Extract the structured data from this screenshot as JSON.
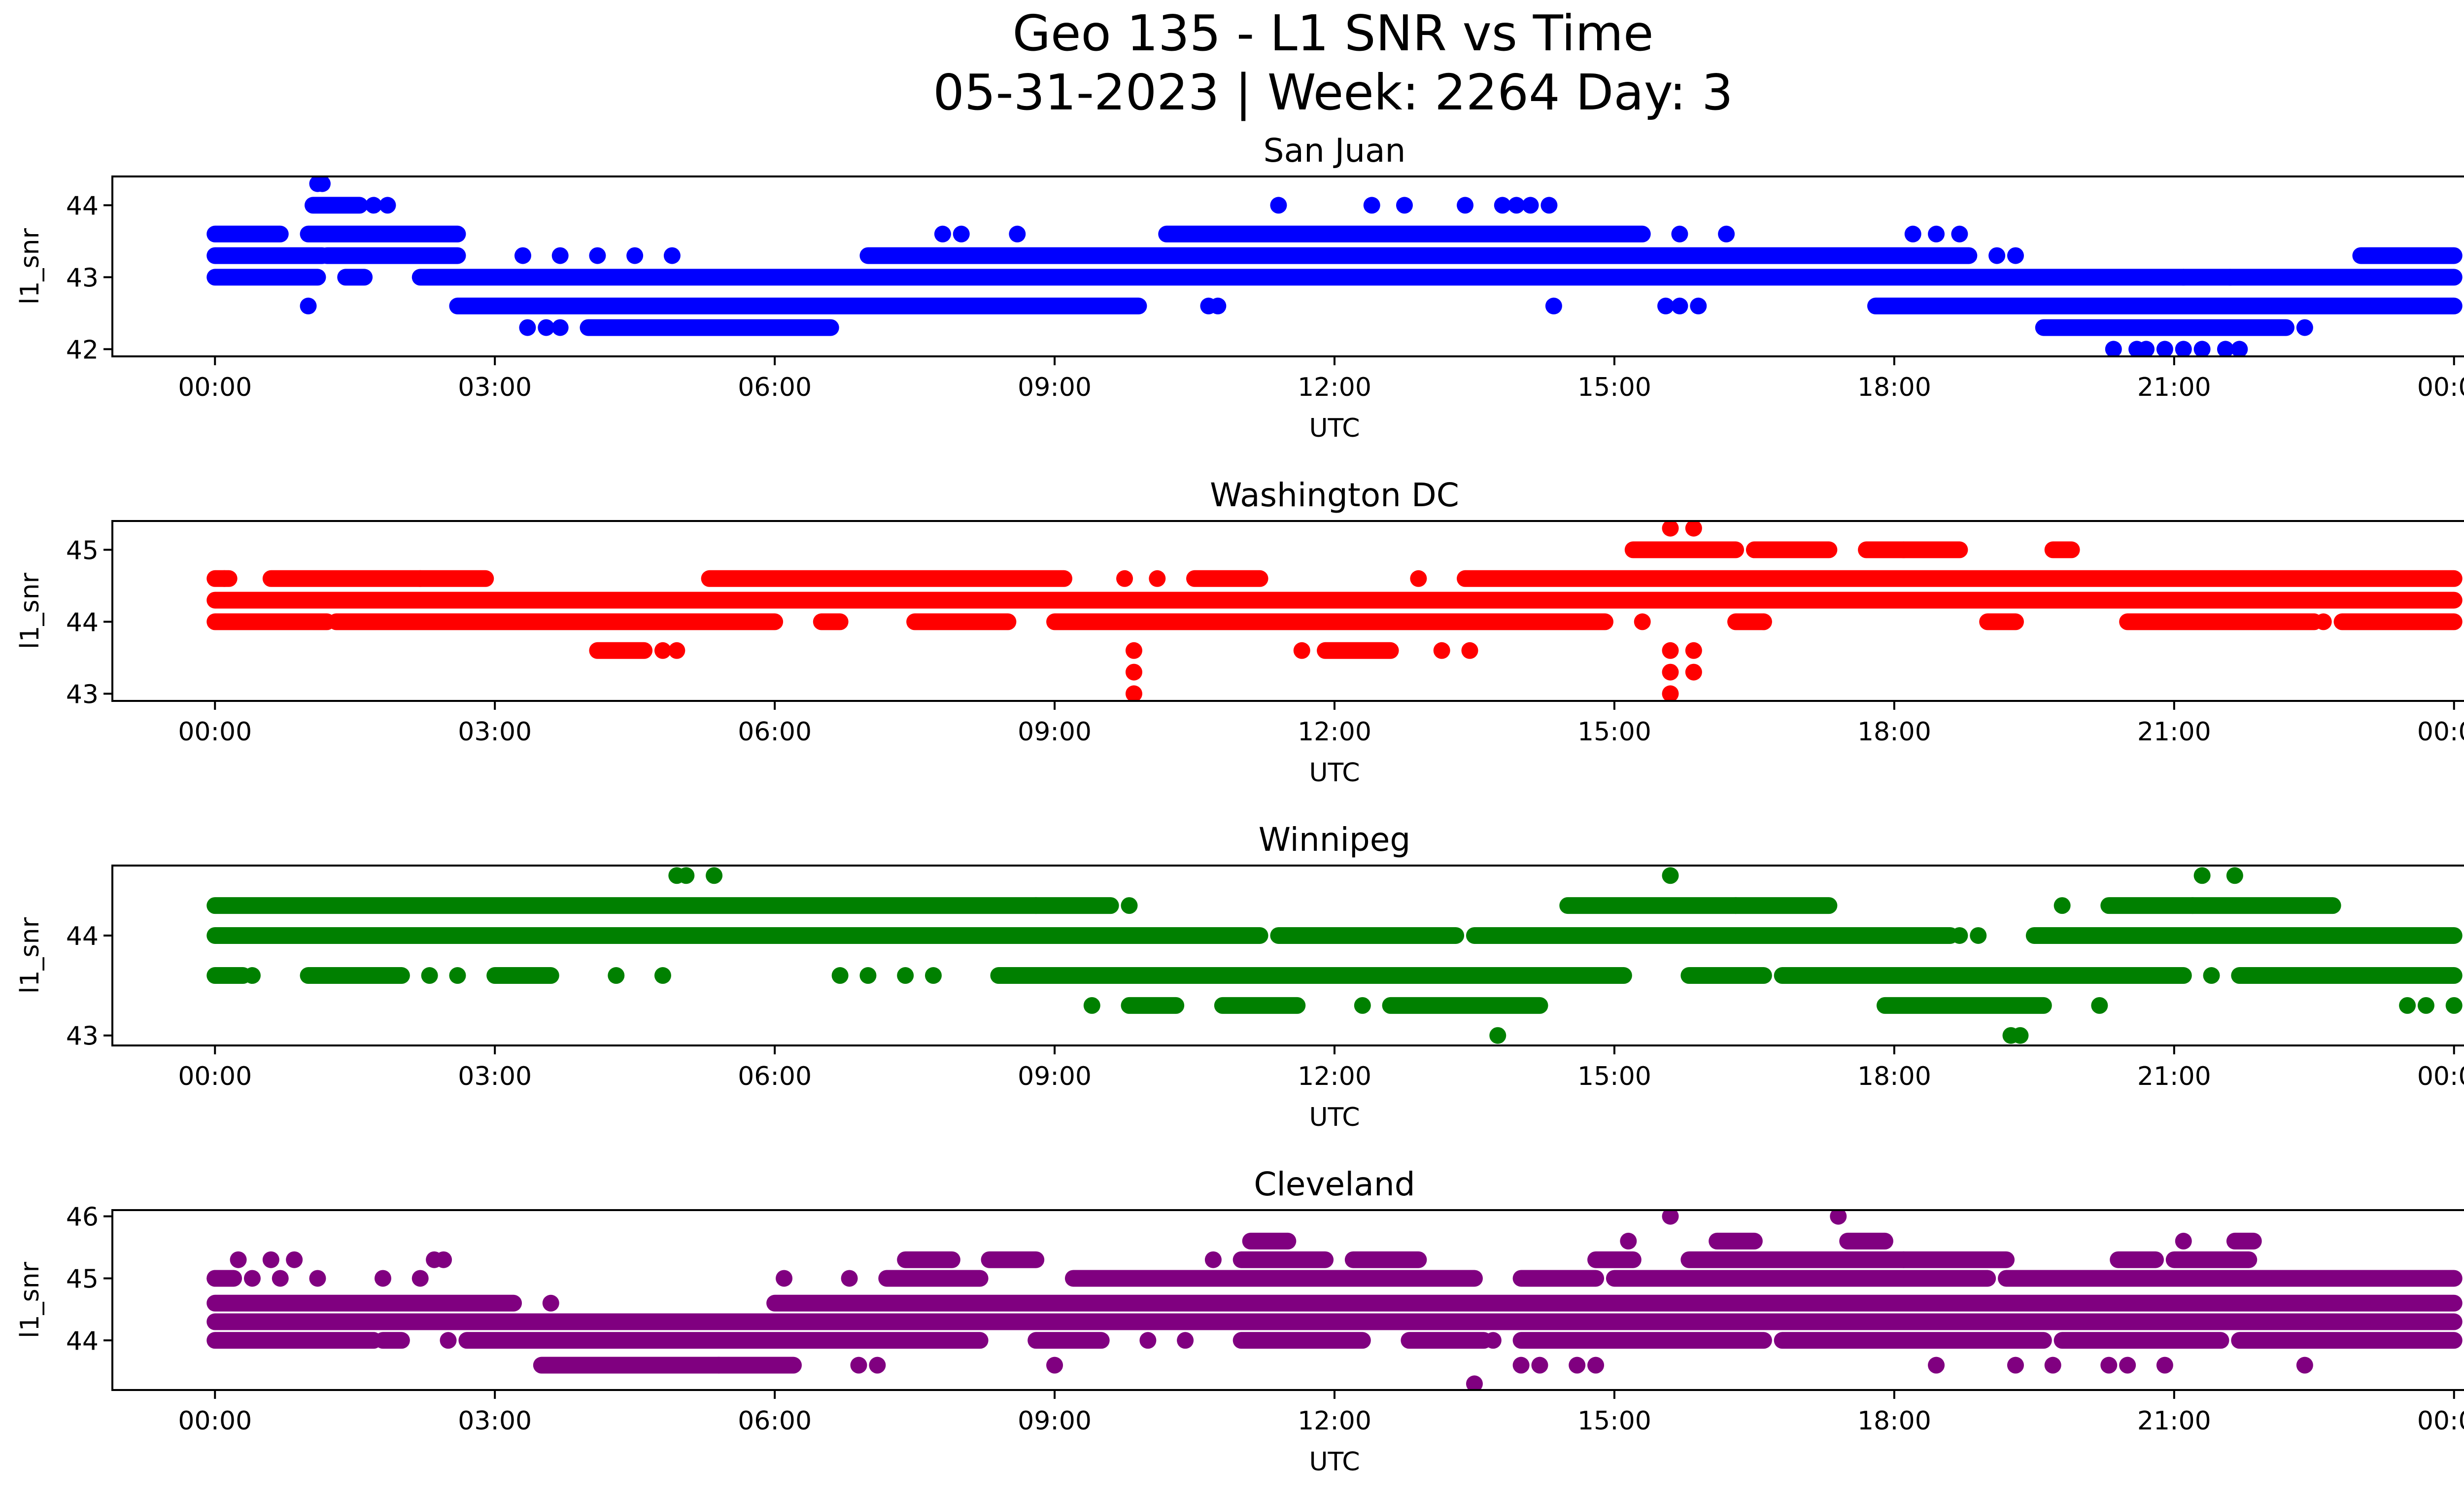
{
  "figure": {
    "title_line1": "Geo 135 - L1 SNR vs Time",
    "title_line2": "05-31-2023 | Week: 2264 Day: 3"
  },
  "chart_data": [
    {
      "type": "scatter",
      "title": "San Juan",
      "xlabel": "UTC",
      "ylabel": "l1_snr",
      "color": "#0000ff",
      "xlim": [
        "2023-05-30 22:54",
        "2023-06-01 01:06"
      ],
      "ylim": [
        41.9,
        44.4
      ],
      "xticks": [
        "00:00",
        "03:00",
        "06:00",
        "09:00",
        "12:00",
        "15:00",
        "18:00",
        "21:00",
        "00:00"
      ],
      "yticks": [
        42,
        43,
        44
      ],
      "x_unit": "UTC time of day, hours from 00:00 2023-05-31",
      "runs": [
        {
          "y": 43.0,
          "ranges": [
            [
              0.0,
              1.1
            ],
            [
              1.4,
              1.6
            ],
            [
              2.2,
              24.0
            ]
          ]
        },
        {
          "y": 43.3,
          "ranges": [
            [
              0.0,
              1.15
            ],
            [
              1.2,
              2.6
            ],
            [
              7.0,
              18.8
            ],
            [
              23.0,
              24.0
            ]
          ]
        },
        {
          "y": 43.6,
          "ranges": [
            [
              0.0,
              0.7
            ],
            [
              1.0,
              2.6
            ],
            [
              10.2,
              15.3
            ]
          ]
        },
        {
          "y": 44.0,
          "ranges": [
            [
              1.05,
              1.55
            ]
          ]
        },
        {
          "y": 42.6,
          "ranges": [
            [
              2.6,
              9.9
            ],
            [
              17.8,
              24.0
            ]
          ]
        },
        {
          "y": 42.3,
          "ranges": [
            [
              4.0,
              6.6
            ],
            [
              19.6,
              22.2
            ]
          ]
        }
      ],
      "points": [
        {
          "x": 1.0,
          "y": 42.6
        },
        {
          "x": 1.1,
          "y": 44.3
        },
        {
          "x": 1.15,
          "y": 44.3
        },
        {
          "x": 1.7,
          "y": 44.0
        },
        {
          "x": 1.85,
          "y": 44.0
        },
        {
          "x": 3.35,
          "y": 42.3
        },
        {
          "x": 3.55,
          "y": 42.3
        },
        {
          "x": 3.7,
          "y": 42.3
        },
        {
          "x": 3.3,
          "y": 43.3
        },
        {
          "x": 3.7,
          "y": 43.3
        },
        {
          "x": 4.1,
          "y": 43.3
        },
        {
          "x": 4.5,
          "y": 43.3
        },
        {
          "x": 4.9,
          "y": 43.3
        },
        {
          "x": 7.8,
          "y": 43.6
        },
        {
          "x": 8.0,
          "y": 43.6
        },
        {
          "x": 8.6,
          "y": 43.6
        },
        {
          "x": 10.65,
          "y": 42.6
        },
        {
          "x": 10.75,
          "y": 42.6
        },
        {
          "x": 11.4,
          "y": 44.0
        },
        {
          "x": 12.4,
          "y": 44.0
        },
        {
          "x": 12.75,
          "y": 44.0
        },
        {
          "x": 13.4,
          "y": 44.0
        },
        {
          "x": 13.8,
          "y": 44.0
        },
        {
          "x": 13.95,
          "y": 44.0
        },
        {
          "x": 14.1,
          "y": 44.0
        },
        {
          "x": 14.3,
          "y": 44.0
        },
        {
          "x": 14.35,
          "y": 42.6
        },
        {
          "x": 15.55,
          "y": 42.6
        },
        {
          "x": 15.7,
          "y": 42.6
        },
        {
          "x": 15.9,
          "y": 42.6
        },
        {
          "x": 15.7,
          "y": 43.6
        },
        {
          "x": 16.2,
          "y": 43.6
        },
        {
          "x": 18.2,
          "y": 43.6
        },
        {
          "x": 18.45,
          "y": 43.6
        },
        {
          "x": 18.7,
          "y": 43.6
        },
        {
          "x": 19.1,
          "y": 43.3
        },
        {
          "x": 19.3,
          "y": 43.3
        },
        {
          "x": 20.35,
          "y": 42.0
        },
        {
          "x": 20.6,
          "y": 42.0
        },
        {
          "x": 20.7,
          "y": 42.0
        },
        {
          "x": 20.9,
          "y": 42.0
        },
        {
          "x": 21.1,
          "y": 42.0
        },
        {
          "x": 21.3,
          "y": 42.0
        },
        {
          "x": 21.55,
          "y": 42.0
        },
        {
          "x": 21.7,
          "y": 42.0
        },
        {
          "x": 22.4,
          "y": 42.3
        },
        {
          "x": 21.1,
          "y": 43.0
        },
        {
          "x": 21.6,
          "y": 43.0
        }
      ]
    },
    {
      "type": "scatter",
      "title": "Washington DC",
      "xlabel": "UTC",
      "ylabel": "l1_snr",
      "color": "#ff0000",
      "xlim": [
        "2023-05-30 22:54",
        "2023-06-01 01:06"
      ],
      "ylim": [
        42.9,
        45.4
      ],
      "xticks": [
        "00:00",
        "03:00",
        "06:00",
        "09:00",
        "12:00",
        "15:00",
        "18:00",
        "21:00",
        "00:00"
      ],
      "yticks": [
        43,
        44,
        45
      ],
      "x_unit": "UTC time of day, hours from 00:00 2023-05-31",
      "runs": [
        {
          "y": 44.3,
          "ranges": [
            [
              0.0,
              24.0
            ]
          ]
        },
        {
          "y": 44.0,
          "ranges": [
            [
              0.0,
              1.2
            ],
            [
              1.3,
              6.0
            ],
            [
              6.5,
              6.7
            ],
            [
              7.5,
              8.5
            ],
            [
              9.0,
              14.9
            ],
            [
              16.3,
              16.6
            ],
            [
              19.0,
              19.3
            ],
            [
              20.5,
              22.5
            ],
            [
              22.8,
              24.0
            ]
          ]
        },
        {
          "y": 44.6,
          "ranges": [
            [
              0.0,
              0.15
            ],
            [
              0.6,
              2.2
            ],
            [
              2.2,
              2.9
            ],
            [
              5.3,
              9.1
            ],
            [
              10.5,
              11.2
            ],
            [
              13.4,
              24.0
            ]
          ]
        },
        {
          "y": 45.0,
          "ranges": [
            [
              15.2,
              16.3
            ],
            [
              16.5,
              17.3
            ],
            [
              17.7,
              18.1
            ],
            [
              18.1,
              18.7
            ],
            [
              19.7,
              19.9
            ]
          ]
        },
        {
          "y": 43.6,
          "ranges": [
            [
              4.1,
              4.6
            ],
            [
              11.9,
              12.6
            ]
          ]
        }
      ],
      "points": [
        {
          "x": 0.1,
          "y": 44.6
        },
        {
          "x": 4.8,
          "y": 43.6
        },
        {
          "x": 4.95,
          "y": 43.6
        },
        {
          "x": 9.75,
          "y": 44.6
        },
        {
          "x": 10.1,
          "y": 44.6
        },
        {
          "x": 9.85,
          "y": 43.6
        },
        {
          "x": 9.85,
          "y": 43.3
        },
        {
          "x": 9.85,
          "y": 43.0
        },
        {
          "x": 11.65,
          "y": 43.6
        },
        {
          "x": 12.9,
          "y": 44.6
        },
        {
          "x": 13.15,
          "y": 43.6
        },
        {
          "x": 13.45,
          "y": 43.6
        },
        {
          "x": 15.3,
          "y": 44.0
        },
        {
          "x": 15.6,
          "y": 43.6
        },
        {
          "x": 15.6,
          "y": 43.3
        },
        {
          "x": 15.6,
          "y": 43.0
        },
        {
          "x": 15.85,
          "y": 43.6
        },
        {
          "x": 15.85,
          "y": 43.3
        },
        {
          "x": 15.6,
          "y": 45.3
        },
        {
          "x": 15.85,
          "y": 45.3
        },
        {
          "x": 16.6,
          "y": 44.0
        },
        {
          "x": 22.6,
          "y": 44.0
        }
      ]
    },
    {
      "type": "scatter",
      "title": "Winnipeg",
      "xlabel": "UTC",
      "ylabel": "l1_snr",
      "color": "#008000",
      "xlim": [
        "2023-05-30 22:54",
        "2023-06-01 01:06"
      ],
      "ylim": [
        42.9,
        44.7
      ],
      "xticks": [
        "00:00",
        "03:00",
        "06:00",
        "09:00",
        "12:00",
        "15:00",
        "18:00",
        "21:00",
        "00:00"
      ],
      "yticks": [
        43,
        44
      ],
      "x_unit": "UTC time of day, hours from 00:00 2023-05-31",
      "runs": [
        {
          "y": 44.0,
          "ranges": [
            [
              0.0,
              11.2
            ],
            [
              11.4,
              13.3
            ],
            [
              13.5,
              18.6
            ],
            [
              19.5,
              24.0
            ]
          ]
        },
        {
          "y": 44.3,
          "ranges": [
            [
              0.0,
              8.8
            ],
            [
              8.8,
              9.6
            ],
            [
              14.5,
              16.3
            ],
            [
              16.3,
              17.3
            ],
            [
              20.3,
              21.2
            ],
            [
              21.2,
              22.7
            ]
          ]
        },
        {
          "y": 43.6,
          "ranges": [
            [
              0.0,
              0.3
            ],
            [
              1.0,
              2.0
            ],
            [
              3.0,
              3.6
            ],
            [
              8.4,
              15.1
            ],
            [
              15.8,
              16.6
            ],
            [
              16.8,
              21.1
            ],
            [
              21.7,
              24.0
            ]
          ]
        },
        {
          "y": 43.3,
          "ranges": [
            [
              9.8,
              10.3
            ],
            [
              10.8,
              11.6
            ],
            [
              12.6,
              14.2
            ],
            [
              17.9,
              19.6
            ]
          ]
        }
      ],
      "points": [
        {
          "x": 0.4,
          "y": 43.6
        },
        {
          "x": 2.3,
          "y": 43.6
        },
        {
          "x": 2.6,
          "y": 43.6
        },
        {
          "x": 4.3,
          "y": 43.6
        },
        {
          "x": 4.8,
          "y": 43.6
        },
        {
          "x": 4.95,
          "y": 44.6
        },
        {
          "x": 5.05,
          "y": 44.6
        },
        {
          "x": 5.35,
          "y": 44.6
        },
        {
          "x": 6.7,
          "y": 43.6
        },
        {
          "x": 7.0,
          "y": 43.6
        },
        {
          "x": 7.4,
          "y": 43.6
        },
        {
          "x": 7.7,
          "y": 43.6
        },
        {
          "x": 9.8,
          "y": 44.3
        },
        {
          "x": 9.4,
          "y": 43.3
        },
        {
          "x": 12.3,
          "y": 43.3
        },
        {
          "x": 13.75,
          "y": 43.0
        },
        {
          "x": 15.6,
          "y": 44.6
        },
        {
          "x": 18.7,
          "y": 44.0
        },
        {
          "x": 18.9,
          "y": 44.0
        },
        {
          "x": 19.25,
          "y": 43.0
        },
        {
          "x": 19.35,
          "y": 43.0
        },
        {
          "x": 19.8,
          "y": 44.3
        },
        {
          "x": 20.2,
          "y": 43.3
        },
        {
          "x": 21.3,
          "y": 44.6
        },
        {
          "x": 21.65,
          "y": 44.6
        },
        {
          "x": 21.4,
          "y": 43.6
        },
        {
          "x": 23.5,
          "y": 43.3
        },
        {
          "x": 23.7,
          "y": 43.3
        },
        {
          "x": 24.0,
          "y": 43.3
        }
      ]
    },
    {
      "type": "scatter",
      "title": "Cleveland",
      "xlabel": "UTC",
      "ylabel": "l1_snr",
      "color": "#800080",
      "xlim": [
        "2023-05-30 22:54",
        "2023-06-01 01:06"
      ],
      "ylim": [
        43.2,
        46.1
      ],
      "xticks": [
        "00:00",
        "03:00",
        "06:00",
        "09:00",
        "12:00",
        "15:00",
        "18:00",
        "21:00",
        "00:00"
      ],
      "yticks": [
        44,
        45,
        46
      ],
      "x_unit": "UTC time of day, hours from 00:00 2023-05-31",
      "runs": [
        {
          "y": 44.6,
          "ranges": [
            [
              0.0,
              3.2
            ],
            [
              6.0,
              24.0
            ]
          ]
        },
        {
          "y": 44.3,
          "ranges": [
            [
              0.0,
              6.5
            ],
            [
              6.5,
              8.8
            ],
            [
              8.8,
              24.0
            ]
          ]
        },
        {
          "y": 44.0,
          "ranges": [
            [
              0.0,
              1.7
            ],
            [
              1.8,
              2.0
            ],
            [
              2.7,
              8.2
            ],
            [
              8.8,
              9.5
            ],
            [
              11.0,
              12.3
            ],
            [
              12.8,
              13.6
            ],
            [
              14.0,
              16.6
            ],
            [
              16.8,
              19.6
            ],
            [
              19.8,
              21.5
            ],
            [
              21.7,
              24.0
            ]
          ]
        },
        {
          "y": 43.6,
          "ranges": [
            [
              3.5,
              5.4
            ],
            [
              5.4,
              6.2
            ]
          ]
        },
        {
          "y": 45.0,
          "ranges": [
            [
              0.0,
              0.2
            ],
            [
              7.2,
              8.2
            ],
            [
              9.2,
              13.5
            ],
            [
              14.0,
              14.8
            ],
            [
              15.0,
              19.0
            ],
            [
              19.2,
              24.0
            ]
          ]
        },
        {
          "y": 45.3,
          "ranges": [
            [
              7.4,
              7.9
            ],
            [
              8.3,
              8.8
            ],
            [
              11.0,
              11.9
            ],
            [
              12.2,
              12.9
            ],
            [
              14.8,
              15.2
            ],
            [
              15.8,
              18.1
            ],
            [
              18.1,
              19.2
            ],
            [
              20.4,
              20.8
            ],
            [
              21.0,
              21.8
            ]
          ]
        },
        {
          "y": 45.6,
          "ranges": [
            [
              11.1,
              11.5
            ],
            [
              16.1,
              16.5
            ],
            [
              17.5,
              17.9
            ],
            [
              21.65,
              21.85
            ]
          ]
        }
      ],
      "points": [
        {
          "x": 0.0,
          "y": 45.0
        },
        {
          "x": 0.25,
          "y": 45.3
        },
        {
          "x": 0.6,
          "y": 45.3
        },
        {
          "x": 0.85,
          "y": 45.3
        },
        {
          "x": 0.4,
          "y": 45.0
        },
        {
          "x": 0.7,
          "y": 45.0
        },
        {
          "x": 1.1,
          "y": 45.0
        },
        {
          "x": 1.8,
          "y": 45.0
        },
        {
          "x": 2.2,
          "y": 45.0
        },
        {
          "x": 2.35,
          "y": 45.3
        },
        {
          "x": 2.45,
          "y": 45.3
        },
        {
          "x": 2.5,
          "y": 44.0
        },
        {
          "x": 3.4,
          "y": 44.3
        },
        {
          "x": 3.6,
          "y": 44.6
        },
        {
          "x": 6.1,
          "y": 45.0
        },
        {
          "x": 6.8,
          "y": 45.0
        },
        {
          "x": 6.9,
          "y": 43.6
        },
        {
          "x": 7.1,
          "y": 43.6
        },
        {
          "x": 9.0,
          "y": 43.6
        },
        {
          "x": 10.0,
          "y": 44.0
        },
        {
          "x": 10.4,
          "y": 44.0
        },
        {
          "x": 10.7,
          "y": 45.3
        },
        {
          "x": 13.5,
          "y": 43.3
        },
        {
          "x": 13.7,
          "y": 44.0
        },
        {
          "x": 14.0,
          "y": 43.6
        },
        {
          "x": 14.2,
          "y": 43.6
        },
        {
          "x": 14.6,
          "y": 43.6
        },
        {
          "x": 14.8,
          "y": 43.6
        },
        {
          "x": 15.15,
          "y": 45.6
        },
        {
          "x": 15.6,
          "y": 46.0
        },
        {
          "x": 17.4,
          "y": 46.0
        },
        {
          "x": 18.45,
          "y": 43.6
        },
        {
          "x": 19.3,
          "y": 43.6
        },
        {
          "x": 19.7,
          "y": 43.6
        },
        {
          "x": 20.3,
          "y": 43.6
        },
        {
          "x": 20.5,
          "y": 43.6
        },
        {
          "x": 20.9,
          "y": 43.6
        },
        {
          "x": 21.1,
          "y": 45.6
        },
        {
          "x": 22.4,
          "y": 43.6
        },
        {
          "x": 22.0,
          "y": 45.0
        },
        {
          "x": 22.8,
          "y": 45.0
        },
        {
          "x": 23.3,
          "y": 45.0
        },
        {
          "x": 23.6,
          "y": 45.0
        }
      ]
    }
  ]
}
